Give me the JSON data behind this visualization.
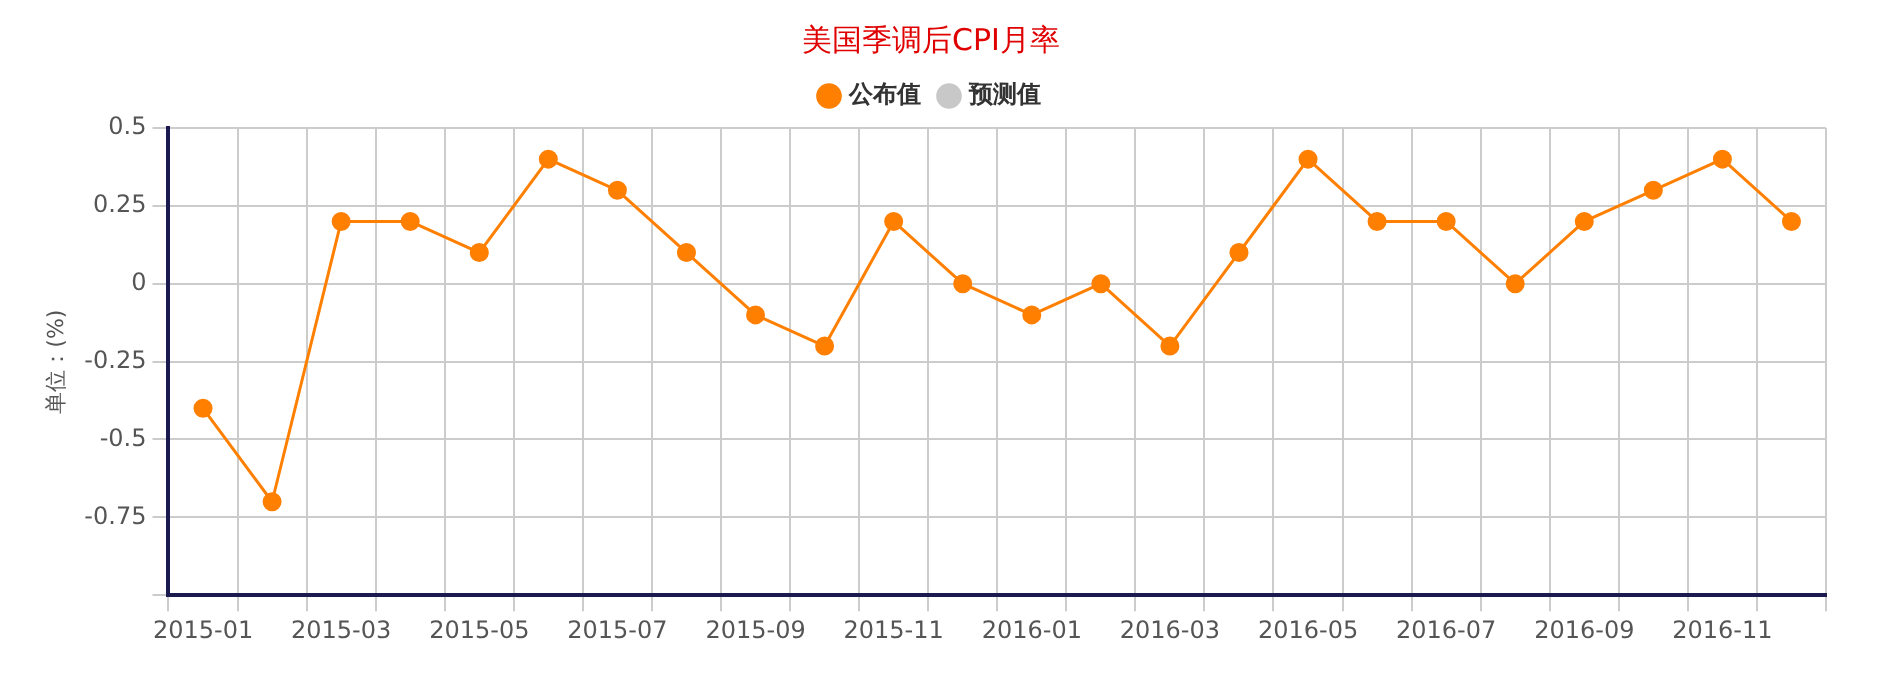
{
  "chart_data": {
    "type": "line",
    "title": "美国季调后CPI月率",
    "ylabel": "单位：(%)",
    "categories": [
      "2015-01",
      null,
      "2015-03",
      null,
      "2015-05",
      null,
      "2015-07",
      null,
      "2015-09",
      null,
      "2015-11",
      null,
      "2016-01",
      null,
      "2016-03",
      null,
      "2016-05",
      null,
      "2016-07",
      null,
      "2016-09",
      null,
      "2016-11",
      null
    ],
    "series": [
      {
        "name": "公布值",
        "color": "#ff7f00",
        "values": [
          -0.4,
          -0.7,
          0.2,
          0.2,
          0.1,
          0.4,
          0.3,
          0.1,
          -0.1,
          -0.2,
          0.2,
          0,
          -0.1,
          0,
          -0.2,
          0.1,
          0.4,
          0.2,
          0.2,
          0,
          0.2,
          0.3,
          0.4,
          0.2
        ]
      },
      {
        "name": "预测值",
        "color": "#c8c8c8",
        "values": [
          null,
          null,
          null,
          null,
          null,
          null,
          null,
          null,
          null,
          null,
          null,
          null,
          null,
          null,
          null,
          null,
          null,
          null,
          null,
          null,
          null,
          null,
          null,
          null
        ]
      }
    ],
    "ylim": [
      -1,
      0.5
    ],
    "yticks": [
      {
        "value": -1,
        "label": null
      },
      -0.75,
      -0.5,
      -0.25,
      0,
      0.25,
      0.5
    ],
    "grid": true,
    "legend": "top",
    "marker": "circle",
    "line_style": "solid"
  }
}
